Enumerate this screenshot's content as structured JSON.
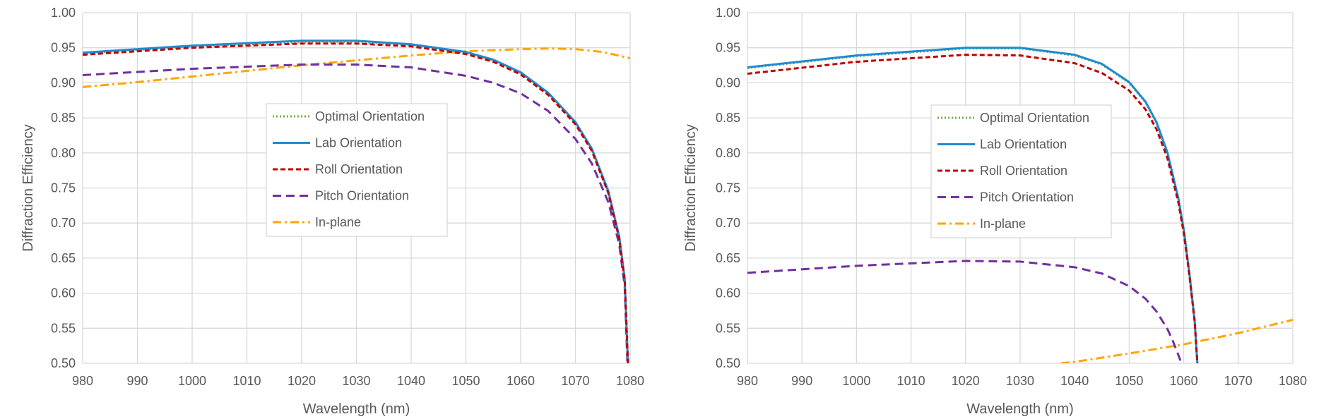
{
  "chart_data": [
    {
      "type": "line",
      "xlabel": "Wavelength (nm)",
      "ylabel": "Diffraction Efficiency",
      "xlim": [
        980,
        1080
      ],
      "ylim": [
        0.5,
        1.0
      ],
      "xticks": [
        "980",
        "990",
        "1000",
        "1010",
        "1020",
        "1030",
        "1040",
        "1050",
        "1060",
        "1070",
        "1080"
      ],
      "yticks": [
        "0.50",
        "0.55",
        "0.60",
        "0.65",
        "0.70",
        "0.75",
        "0.80",
        "0.85",
        "0.90",
        "0.95",
        "1.00"
      ],
      "grid": true,
      "legend_position": "center",
      "series": [
        {
          "name": "Optimal Orientation",
          "color": "#70AD47",
          "dash": "dotted",
          "x": [
            980,
            1000,
            1020,
            1030,
            1040,
            1050,
            1055,
            1060,
            1065,
            1070,
            1073,
            1076,
            1078,
            1079,
            1079.6
          ],
          "y": [
            0.942,
            0.952,
            0.958,
            0.958,
            0.954,
            0.943,
            0.932,
            0.914,
            0.885,
            0.843,
            0.805,
            0.745,
            0.68,
            0.62,
            0.5
          ]
        },
        {
          "name": "Lab Orientation",
          "color": "#1F8AD0",
          "dash": "solid",
          "x": [
            980,
            1000,
            1020,
            1030,
            1040,
            1050,
            1055,
            1060,
            1065,
            1070,
            1073,
            1076,
            1078,
            1079,
            1079.6
          ],
          "y": [
            0.943,
            0.953,
            0.96,
            0.96,
            0.955,
            0.944,
            0.933,
            0.915,
            0.886,
            0.844,
            0.806,
            0.746,
            0.681,
            0.621,
            0.5
          ]
        },
        {
          "name": "Roll Orientation",
          "color": "#C00000",
          "dash": "dashed",
          "x": [
            980,
            1000,
            1020,
            1030,
            1040,
            1050,
            1055,
            1060,
            1065,
            1070,
            1073,
            1076,
            1078,
            1079,
            1079.6
          ],
          "y": [
            0.94,
            0.95,
            0.956,
            0.956,
            0.952,
            0.941,
            0.93,
            0.912,
            0.883,
            0.841,
            0.803,
            0.743,
            0.678,
            0.618,
            0.5
          ]
        },
        {
          "name": "Pitch Orientation",
          "color": "#7030A0",
          "dash": "longdash",
          "x": [
            980,
            1000,
            1020,
            1030,
            1040,
            1050,
            1055,
            1060,
            1065,
            1070,
            1073,
            1076,
            1078,
            1079,
            1079.5
          ],
          "y": [
            0.911,
            0.92,
            0.926,
            0.926,
            0.922,
            0.91,
            0.9,
            0.885,
            0.86,
            0.82,
            0.785,
            0.73,
            0.67,
            0.61,
            0.5
          ]
        },
        {
          "name": "In-plane",
          "color": "#FFA500",
          "dash": "dashdot",
          "x": [
            980,
            990,
            1000,
            1010,
            1020,
            1030,
            1040,
            1050,
            1060,
            1065,
            1070,
            1075,
            1080
          ],
          "y": [
            0.894,
            0.901,
            0.909,
            0.917,
            0.925,
            0.932,
            0.939,
            0.945,
            0.948,
            0.949,
            0.948,
            0.944,
            0.935
          ]
        }
      ]
    },
    {
      "type": "line",
      "xlabel": "Wavelength (nm)",
      "ylabel": "Diffraction Efficiency",
      "xlim": [
        980,
        1080
      ],
      "ylim": [
        0.5,
        1.0
      ],
      "xticks": [
        "980",
        "990",
        "1000",
        "1010",
        "1020",
        "1030",
        "1040",
        "1050",
        "1060",
        "1070",
        "1080"
      ],
      "yticks": [
        "0.50",
        "0.55",
        "0.60",
        "0.65",
        "0.70",
        "0.75",
        "0.80",
        "0.85",
        "0.90",
        "0.95",
        "1.00"
      ],
      "grid": true,
      "legend_position": "center",
      "series": [
        {
          "name": "Optimal Orientation",
          "color": "#70AD47",
          "dash": "dotted",
          "x": [
            980,
            1000,
            1020,
            1030,
            1040,
            1045,
            1050,
            1053,
            1055,
            1057,
            1059,
            1060,
            1061,
            1062,
            1062.5
          ],
          "y": [
            0.921,
            0.938,
            0.949,
            0.949,
            0.939,
            0.926,
            0.9,
            0.872,
            0.843,
            0.8,
            0.735,
            0.69,
            0.63,
            0.56,
            0.5
          ]
        },
        {
          "name": "Lab Orientation",
          "color": "#1F8AD0",
          "dash": "solid",
          "x": [
            980,
            1000,
            1020,
            1030,
            1040,
            1045,
            1050,
            1053,
            1055,
            1057,
            1059,
            1060,
            1061,
            1062,
            1062.5
          ],
          "y": [
            0.922,
            0.939,
            0.95,
            0.95,
            0.94,
            0.927,
            0.901,
            0.873,
            0.844,
            0.801,
            0.736,
            0.691,
            0.631,
            0.561,
            0.5
          ]
        },
        {
          "name": "Roll Orientation",
          "color": "#C00000",
          "dash": "dashed",
          "x": [
            980,
            1000,
            1020,
            1030,
            1040,
            1045,
            1050,
            1053,
            1055,
            1057,
            1059,
            1060,
            1061,
            1062,
            1062.5
          ],
          "y": [
            0.913,
            0.93,
            0.94,
            0.939,
            0.928,
            0.914,
            0.889,
            0.862,
            0.834,
            0.793,
            0.73,
            0.686,
            0.628,
            0.56,
            0.5
          ]
        },
        {
          "name": "Pitch Orientation",
          "color": "#7030A0",
          "dash": "longdash",
          "x": [
            980,
            1000,
            1020,
            1030,
            1040,
            1045,
            1050,
            1053,
            1055,
            1057,
            1058,
            1059,
            1059.6
          ],
          "y": [
            0.629,
            0.639,
            0.646,
            0.645,
            0.637,
            0.628,
            0.61,
            0.592,
            0.574,
            0.549,
            0.532,
            0.512,
            0.5
          ]
        },
        {
          "name": "In-plane",
          "color": "#FFA500",
          "dash": "dashdot",
          "x": [
            1037.5,
            1040,
            1050,
            1060,
            1070,
            1080
          ],
          "y": [
            0.5,
            0.502,
            0.514,
            0.527,
            0.543,
            0.562
          ]
        }
      ]
    }
  ]
}
